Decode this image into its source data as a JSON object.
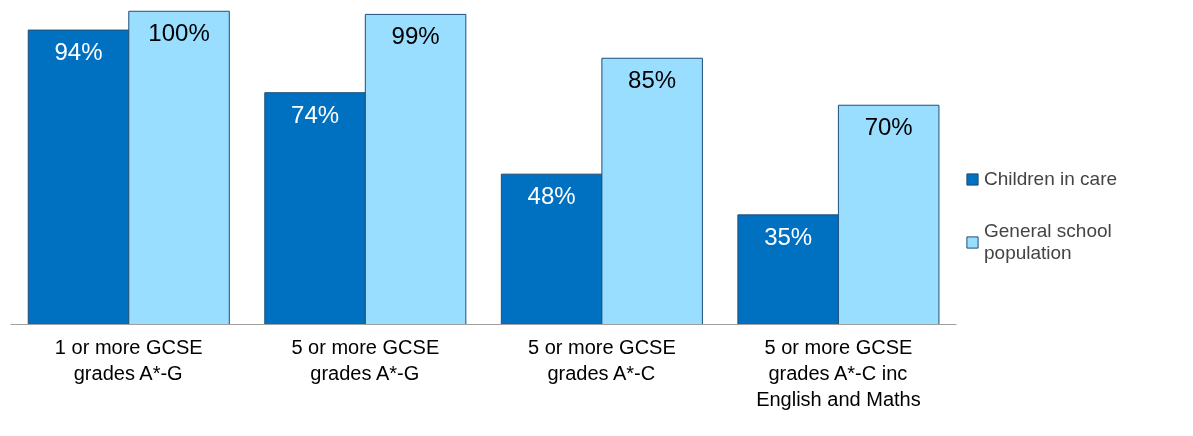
{
  "chart_data": {
    "type": "bar",
    "categories": [
      "1 or more GCSE\ngrades A*-G",
      "5 or more GCSE\ngrades A*-G",
      "5 or more GCSE\ngrades A*-C",
      "5 or more GCSE\ngrades A*-C inc\nEnglish and Maths"
    ],
    "series": [
      {
        "name": "Children in care",
        "color": "#0070c0",
        "values": [
          94,
          74,
          48,
          35
        ],
        "value_labels": [
          "94%",
          "74%",
          "48%",
          "35%"
        ]
      },
      {
        "name": "General school population",
        "color": "#99ddff",
        "values": [
          100,
          99,
          85,
          70
        ],
        "value_labels": [
          "100%",
          "99%",
          "85%",
          "70%"
        ]
      }
    ],
    "legend": "right",
    "grid": false
  }
}
